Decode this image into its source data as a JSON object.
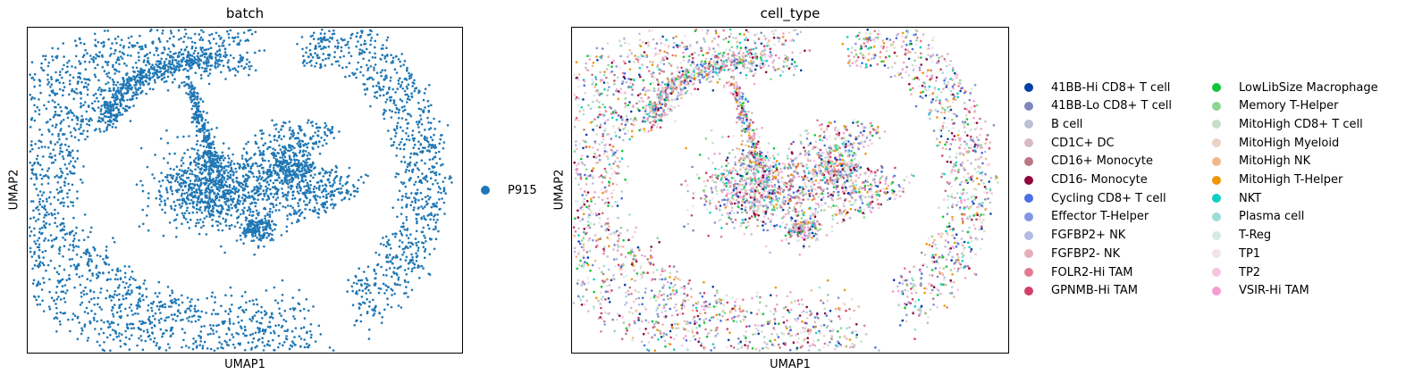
{
  "chart_data": [
    {
      "type": "scatter",
      "title": "batch",
      "xlabel": "UMAP1",
      "ylabel": "UMAP2",
      "grid": false,
      "legend_placement": "right",
      "series": [
        {
          "name": "P915",
          "color": "#1f77b4"
        }
      ]
    },
    {
      "type": "scatter",
      "title": "cell_type",
      "xlabel": "UMAP1",
      "ylabel": "UMAP2",
      "grid": false,
      "legend_placement": "right",
      "series": [
        {
          "name": "41BB-Hi CD8+ T cell",
          "color": "#023fa5"
        },
        {
          "name": "41BB-Lo CD8+ T cell",
          "color": "#7d87b9"
        },
        {
          "name": "B cell",
          "color": "#bec1d4"
        },
        {
          "name": "CD1C+ DC",
          "color": "#d6bcc0"
        },
        {
          "name": "CD16+ Monocyte",
          "color": "#bb7784"
        },
        {
          "name": "CD16- Monocyte",
          "color": "#8e063b"
        },
        {
          "name": "Cycling CD8+ T cell",
          "color": "#4a6fe3"
        },
        {
          "name": "Effector T-Helper",
          "color": "#8595e1"
        },
        {
          "name": "FGFBP2+ NK",
          "color": "#b5bbe3"
        },
        {
          "name": "FGFBP2- NK",
          "color": "#e6afb9"
        },
        {
          "name": "FOLR2-Hi TAM",
          "color": "#e07b91"
        },
        {
          "name": "GPNMB-Hi TAM",
          "color": "#d33f6a"
        },
        {
          "name": "LowLibSize Macrophage",
          "color": "#11c638"
        },
        {
          "name": "Memory T-Helper",
          "color": "#8dd593"
        },
        {
          "name": "MitoHigh CD8+ T cell",
          "color": "#c6dec7"
        },
        {
          "name": "MitoHigh Myeloid",
          "color": "#ead3c6"
        },
        {
          "name": "MitoHigh NK",
          "color": "#f0b98d"
        },
        {
          "name": "MitoHigh T-Helper",
          "color": "#ef9708"
        },
        {
          "name": "NKT",
          "color": "#0fcfc0"
        },
        {
          "name": "Plasma cell",
          "color": "#9cded6"
        },
        {
          "name": "T-Reg",
          "color": "#d5eae7"
        },
        {
          "name": "TP1",
          "color": "#f3e1eb"
        },
        {
          "name": "TP2",
          "color": "#f6c4e1"
        },
        {
          "name": "VSIR-Hi TAM",
          "color": "#f79cd4"
        }
      ]
    }
  ]
}
